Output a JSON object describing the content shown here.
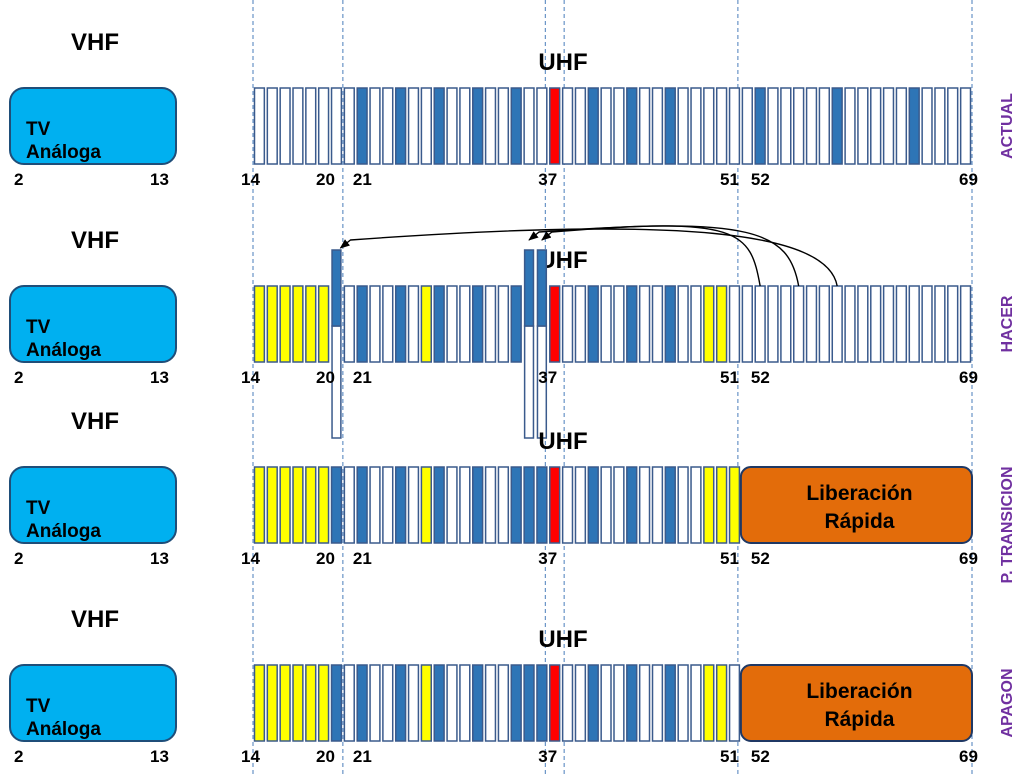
{
  "colors": {
    "channel_outline": "#3a5a8c",
    "channel_empty": "#ffffff",
    "channel_blue": "#2e75b6",
    "channel_yellow": "#ffff00",
    "channel_red": "#ff0000",
    "analog_box": "#00b0f0",
    "liberacion_box": "#e36c0a",
    "side_label": "#7030a0",
    "guide_line": "#4a7ebb"
  },
  "ticks_vhf": [
    "2",
    "13"
  ],
  "ticks_uhf": [
    {
      "label": "14",
      "channel": 14
    },
    {
      "label": "20",
      "channel": 20
    },
    {
      "label": "21",
      "channel": 21
    },
    {
      "label": "37",
      "channel": 37
    },
    {
      "label": "51",
      "channel": 51
    },
    {
      "label": "52",
      "channel": 52
    },
    {
      "label": "69",
      "channel": 69
    }
  ],
  "panels": [
    {
      "id": "actual",
      "vhf_label": "VHF",
      "uhf_label": "UHF",
      "analog_box": {
        "line1": "TV",
        "line2": "Análoga"
      },
      "side_label": "ACTUAL",
      "liberacion": null,
      "blue_channels": [
        22,
        25,
        28,
        31,
        34,
        40,
        43,
        46,
        53,
        59,
        65
      ],
      "yellow_channels": [],
      "red_channels": [
        37
      ],
      "moved_channels": [],
      "arrows": []
    },
    {
      "id": "hacer",
      "vhf_label": "VHF",
      "uhf_label": "UHF",
      "analog_box": {
        "line1": "TV",
        "line2": "Análoga"
      },
      "side_label": "HACER",
      "liberacion": null,
      "blue_channels": [
        22,
        25,
        28,
        31,
        34,
        40,
        43,
        46
      ],
      "yellow_channels": [
        14,
        15,
        16,
        17,
        18,
        19,
        27,
        28,
        49,
        50
      ],
      "red_channels": [
        37
      ],
      "moved_channels": [
        20,
        35,
        36
      ],
      "arrows": [
        {
          "from": 53,
          "to": 36
        },
        {
          "from": 56,
          "to": 35
        },
        {
          "from": 59,
          "to": 20
        }
      ]
    },
    {
      "id": "transicion",
      "vhf_label": "VHF",
      "uhf_label": "UHF",
      "analog_box": {
        "line1": "TV",
        "line2": "Análoga"
      },
      "side_label": "P. TRANSICION",
      "liberacion": {
        "line1": "Liberación",
        "line2": "Rápida"
      },
      "blue_channels": [
        20,
        22,
        25,
        28,
        31,
        34,
        35,
        36,
        40,
        43,
        46
      ],
      "yellow_channels": [
        14,
        15,
        16,
        17,
        18,
        19,
        27,
        28,
        49,
        50,
        51
      ],
      "red_channels": [
        37
      ],
      "moved_channels": [],
      "arrows": []
    },
    {
      "id": "apagon",
      "vhf_label": "VHF",
      "uhf_label": "UHF",
      "analog_box": {
        "line1": "TV",
        "line2": "Análoga"
      },
      "side_label": "APAGON",
      "liberacion": {
        "line1": "Liberación",
        "line2": "Rápida"
      },
      "blue_channels": [
        20,
        22,
        25,
        28,
        31,
        34,
        35,
        36,
        40,
        43,
        46
      ],
      "yellow_channels": [
        14,
        15,
        16,
        17,
        18,
        19,
        27,
        28,
        49,
        50
      ],
      "red_channels": [
        37
      ],
      "moved_channels": [],
      "arrows": []
    }
  ]
}
